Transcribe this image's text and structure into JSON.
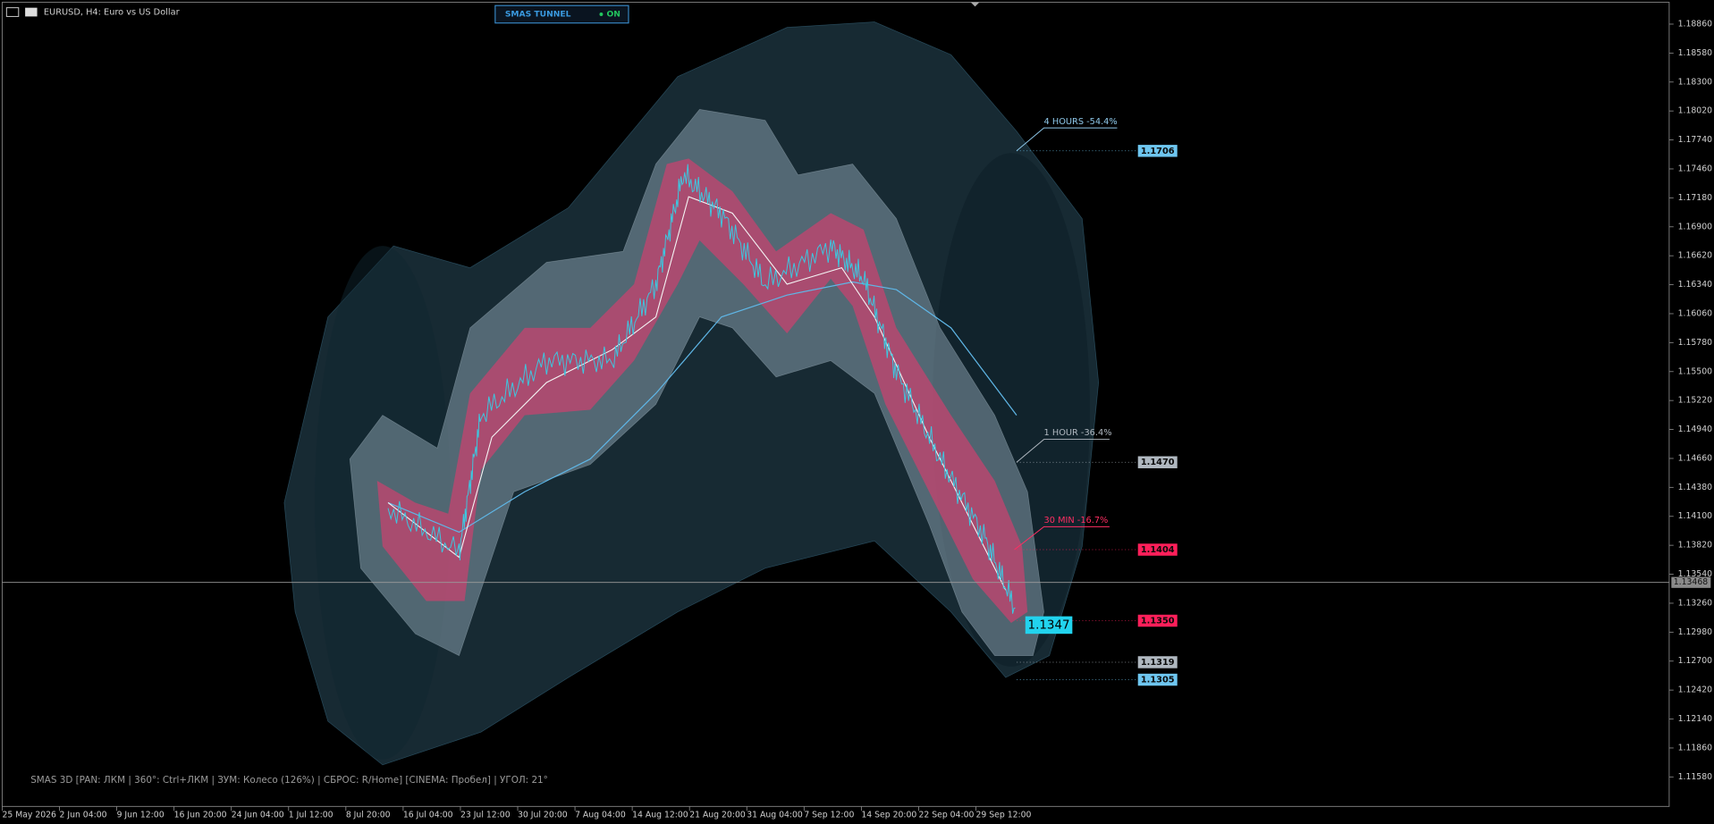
{
  "header": {
    "symbol": "EURUSD, H4:  Euro vs US Dollar"
  },
  "panel": {
    "title": "SMAS TUNNEL",
    "state": "ON"
  },
  "price_axis": [
    "1.18860",
    "1.18580",
    "1.18300",
    "1.18020",
    "1.17740",
    "1.17460",
    "1.17180",
    "1.16900",
    "1.16620",
    "1.16340",
    "1.16060",
    "1.15780",
    "1.15500",
    "1.15220",
    "1.14940",
    "1.14660",
    "1.14380",
    "1.14100",
    "1.13820",
    "1.13540",
    "1.13260",
    "1.12980",
    "1.12700",
    "1.12420",
    "1.12140",
    "1.11860",
    "1.11580"
  ],
  "current_price": "1.13468",
  "time_axis": [
    "25 May 2026",
    "2 Jun 04:00",
    "9 Jun 12:00",
    "16 Jun 20:00",
    "24 Jun 04:00",
    "1 Jul 12:00",
    "8 Jul 20:00",
    "16 Jul 04:00",
    "23 Jul 12:00",
    "30 Jul 20:00",
    "7 Aug 04:00",
    "14 Aug 12:00",
    "21 Aug 20:00",
    "31 Aug 04:00",
    "7 Sep 12:00",
    "14 Sep 20:00",
    "22 Sep 04:00",
    "29 Sep 12:00"
  ],
  "tunnels": {
    "h4": "4 HOURS -54.4%",
    "h1": "1 HOUR -36.4%",
    "m30": "30 MIN -16.7%"
  },
  "tags": {
    "h4_top": "1.1706",
    "h1_top": "1.1470",
    "m30_top": "1.1404",
    "m30_bottom": "1.1350",
    "h1_bottom": "1.1319",
    "h4_bottom": "1.1305",
    "price": "1.1347"
  },
  "footer": "SMAS 3D [PAN: ЛКМ | 360°: Ctrl+ЛКМ | ЗУМ: Колесо (126%) | СБРОС: R/Home] [CINEMA: Пробел] | УГОЛ: 21°"
}
